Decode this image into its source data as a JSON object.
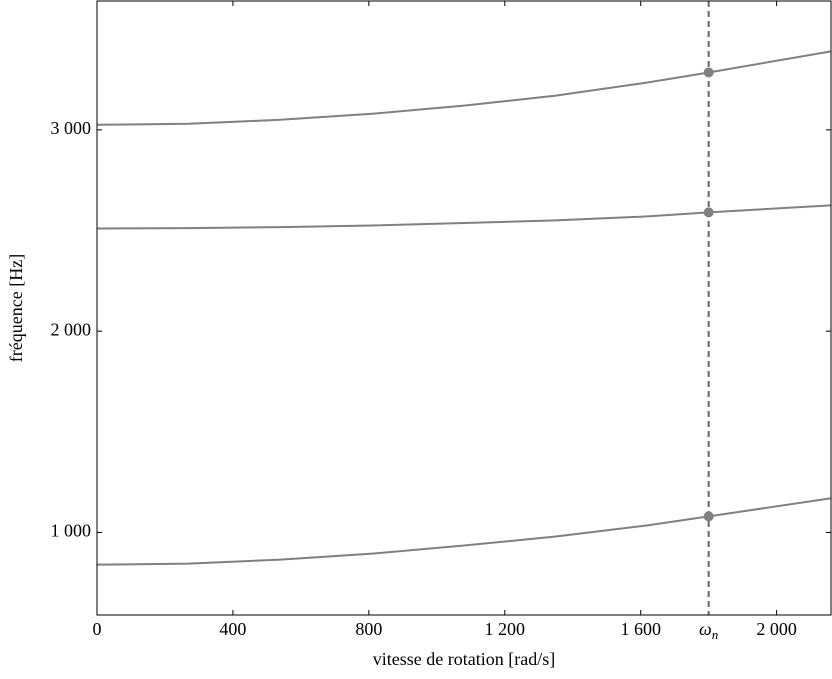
{
  "chart_data": {
    "type": "line",
    "x_label": "vitesse de rotation [rad/s]",
    "y_label": "fréquence [Hz]",
    "x": [
      0,
      270,
      540,
      810,
      1080,
      1350,
      1620,
      1800,
      2160
    ],
    "series": [
      {
        "color": "#808080",
        "values": [
          3025,
          3030,
          3050,
          3080,
          3120,
          3170,
          3235,
          3285,
          3390
        ]
      },
      {
        "color": "#808080",
        "values": [
          2510,
          2512,
          2517,
          2525,
          2537,
          2550,
          2570,
          2590,
          2625
        ]
      },
      {
        "color": "#808080",
        "values": [
          840,
          845,
          865,
          895,
          935,
          980,
          1035,
          1080,
          1170
        ]
      }
    ],
    "annotation": {
      "x": 1800,
      "symbol": "ω",
      "subscript": "n",
      "marker_index": 7
    },
    "xlim": [
      0,
      2160
    ],
    "ylim": [
      590,
      3640
    ],
    "xticks": [
      0,
      400,
      800,
      {
        "value": 1200,
        "label": "1 200"
      },
      {
        "value": 1600,
        "label": "1 600"
      },
      {
        "value": 2000,
        "label": "2 000"
      }
    ],
    "yticks": [
      {
        "value": 1000,
        "label": "1 000"
      },
      {
        "value": 2000,
        "label": "2 000"
      },
      {
        "value": 3000,
        "label": "3 000"
      }
    ],
    "grid": false
  }
}
